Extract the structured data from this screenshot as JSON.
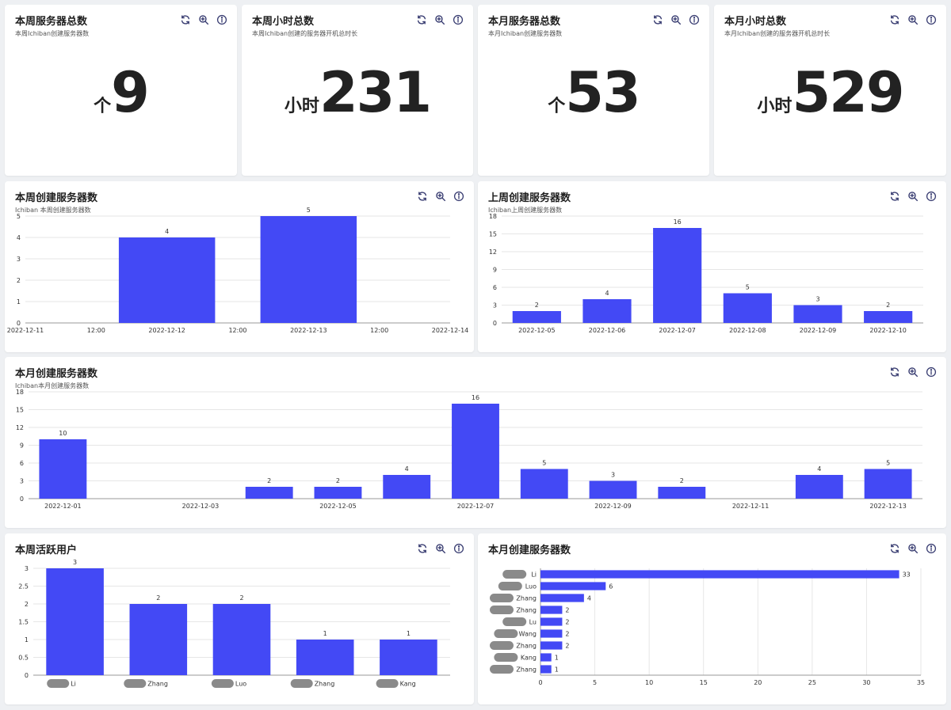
{
  "colors": {
    "bar": "#4349f5",
    "grid": "#e6e6e6",
    "axis": "#999999",
    "text": "#333333"
  },
  "icons": [
    "refresh-icon",
    "zoom-icon",
    "info-icon"
  ],
  "stats": [
    {
      "title": "本周服务器总数",
      "subtitle": "本周Ichiban创建服务器数",
      "unit": "个",
      "value": "9"
    },
    {
      "title": "本周小时总数",
      "subtitle": "本周Ichiban创建的服务器开机总时长",
      "unit": "小时",
      "value": "231"
    },
    {
      "title": "本月服务器总数",
      "subtitle": "本月Ichiban创建服务器数",
      "unit": "个",
      "value": "53"
    },
    {
      "title": "本月小时总数",
      "subtitle": "本月Ichiban创建的服务器开机总时长",
      "unit": "小时",
      "value": "529"
    }
  ],
  "charts": {
    "week_created": {
      "title": "本周创建服务器数",
      "subtitle": "Ichiban 本周创建服务器数"
    },
    "last_week_created": {
      "title": "上周创建服务器数",
      "subtitle": "Ichiban上周创建服务器数"
    },
    "month_created": {
      "title": "本月创建服务器数",
      "subtitle": "Ichiban本月创建服务器数"
    },
    "week_active_users": {
      "title": "本周活跃用户"
    },
    "month_created_by_user": {
      "title": "本月创建服务器数"
    }
  },
  "chart_data": [
    {
      "id": "week_created",
      "type": "bar",
      "x_ticks": [
        "2022-12-11",
        "12:00",
        "2022-12-12",
        "12:00",
        "2022-12-13",
        "12:00",
        "2022-12-14"
      ],
      "categories": [
        "2022-12-12",
        "2022-12-13"
      ],
      "values": [
        4,
        5
      ],
      "ylim": [
        0,
        5
      ],
      "y_ticks": [
        0,
        1,
        2,
        3,
        4,
        5
      ],
      "grid": true
    },
    {
      "id": "last_week_created",
      "type": "bar",
      "categories": [
        "2022-12-05",
        "2022-12-06",
        "2022-12-07",
        "2022-12-08",
        "2022-12-09",
        "2022-12-10"
      ],
      "values": [
        2,
        4,
        16,
        5,
        3,
        2
      ],
      "ylim": [
        0,
        18
      ],
      "y_ticks": [
        0,
        3,
        6,
        9,
        12,
        15,
        18
      ],
      "grid": true
    },
    {
      "id": "month_created",
      "type": "bar",
      "categories": [
        "2022-12-01",
        "2022-12-02",
        "2022-12-03",
        "2022-12-04",
        "2022-12-05",
        "2022-12-06",
        "2022-12-07",
        "2022-12-08",
        "2022-12-09",
        "2022-12-10",
        "2022-12-11",
        "2022-12-12",
        "2022-12-13"
      ],
      "values": [
        10,
        0,
        0,
        2,
        2,
        4,
        16,
        5,
        3,
        2,
        0,
        4,
        5
      ],
      "x_ticks": [
        "2022-12-01",
        "2022-12-03",
        "2022-12-05",
        "2022-12-07",
        "2022-12-09",
        "2022-12-11",
        "2022-12-13"
      ],
      "ylim": [
        0,
        18
      ],
      "y_ticks": [
        0,
        3,
        6,
        9,
        12,
        15,
        18
      ],
      "grid": true
    },
    {
      "id": "week_active_users",
      "type": "bar",
      "categories": [
        "Li",
        "Zhang",
        "Luo",
        "Zhang",
        "Kang"
      ],
      "values": [
        3,
        2,
        2,
        1,
        1
      ],
      "ylim": [
        0,
        3
      ],
      "y_ticks": [
        0,
        0.5,
        1,
        1.5,
        2,
        2.5,
        3
      ],
      "grid": true
    },
    {
      "id": "month_created_by_user",
      "type": "bar",
      "orientation": "horizontal",
      "categories": [
        "Li",
        "Luo",
        "Zhang",
        "Zhang",
        "Lu",
        "Wang",
        "Zhang",
        "Kang",
        "Zhang"
      ],
      "values": [
        33,
        6,
        4,
        2,
        2,
        2,
        2,
        1,
        1
      ],
      "xlim": [
        0,
        35
      ],
      "x_ticks": [
        0,
        5,
        10,
        15,
        20,
        25,
        30,
        35
      ],
      "grid": true
    }
  ]
}
